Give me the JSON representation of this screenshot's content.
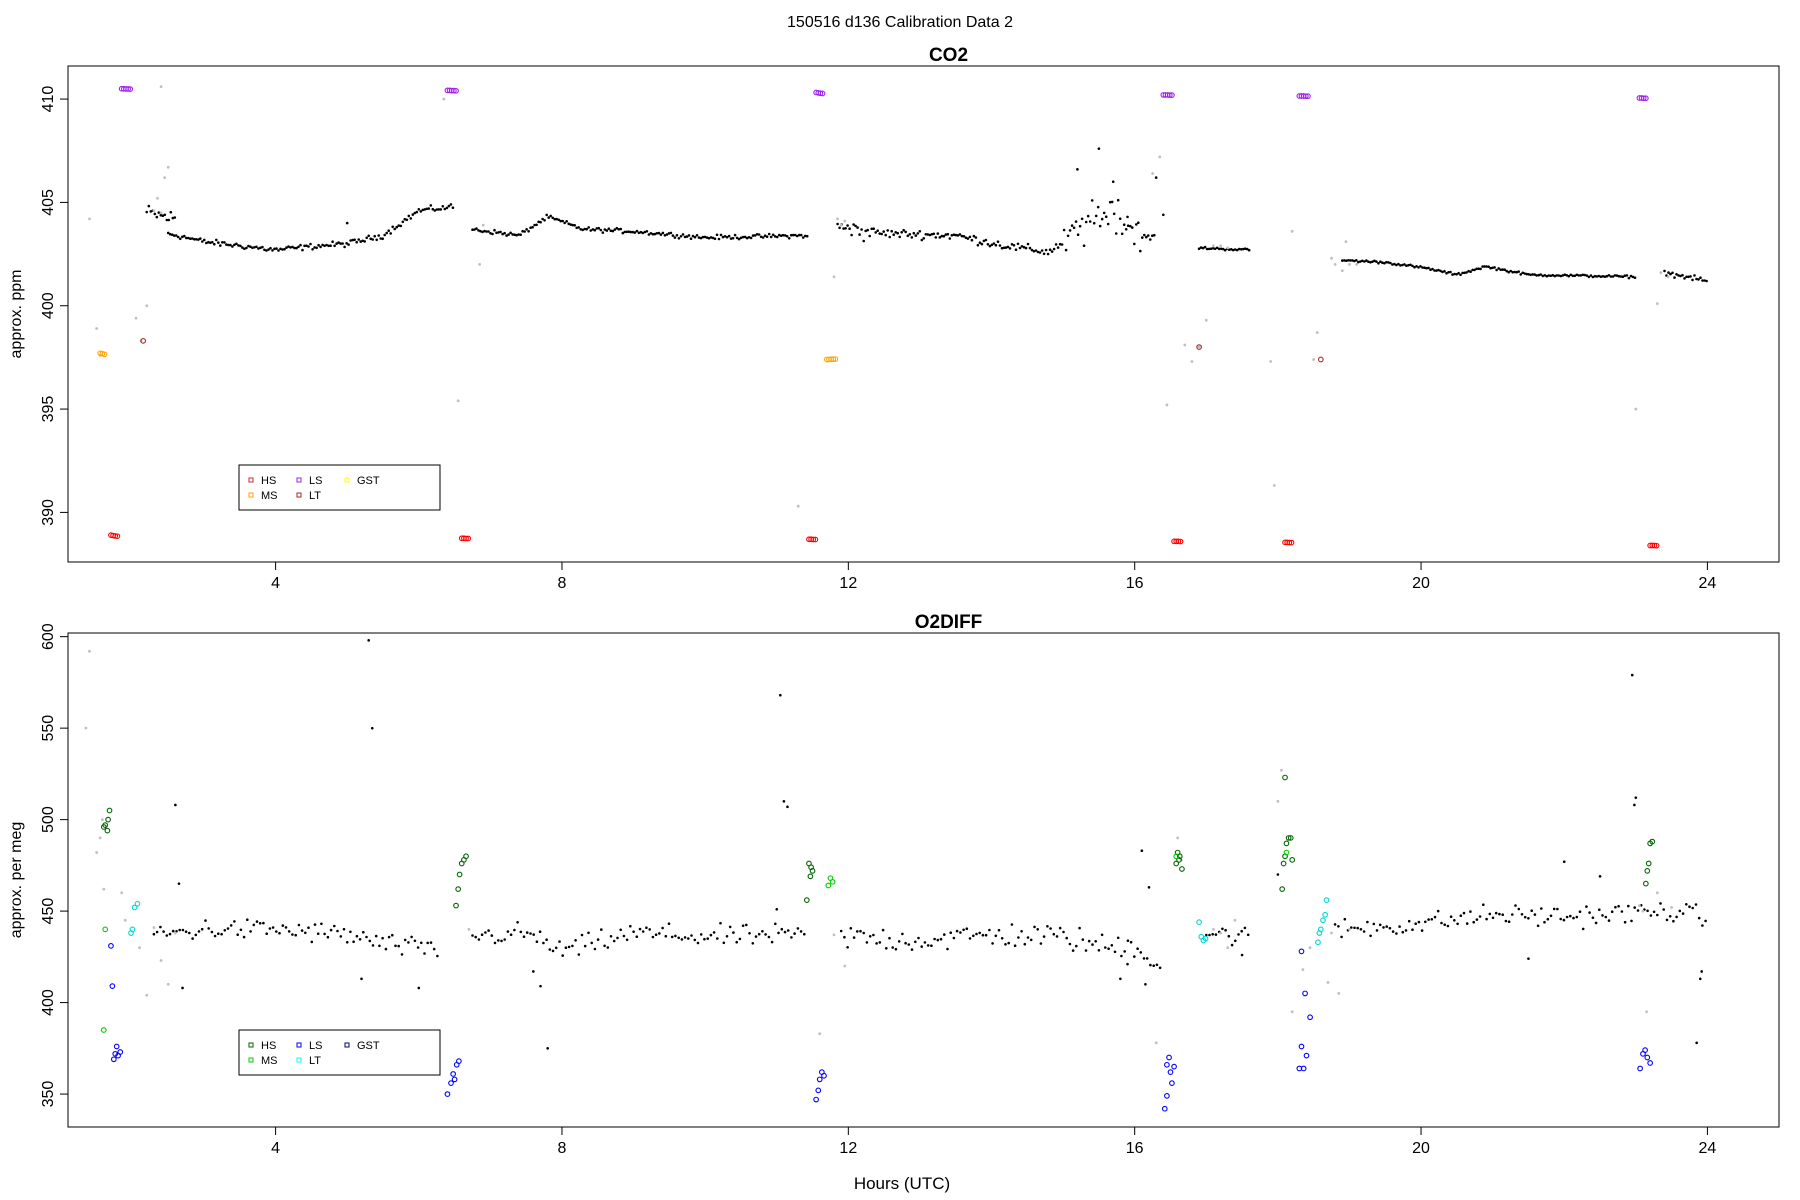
{
  "figure": {
    "title": "150516   d136   Calibration Data 2",
    "xlabel": "Hours (UTC)"
  },
  "chart_data": [
    {
      "type": "scatter",
      "title": "CO2",
      "ylabel": "approx. ppm",
      "xlim": [
        1.1,
        25.0
      ],
      "ylim": [
        387.6,
        411.6
      ],
      "xticks": [
        4,
        8,
        12,
        16,
        20,
        24
      ],
      "yticks": [
        390,
        395,
        400,
        405,
        410
      ],
      "grid": false,
      "legend": {
        "placement": "bottom-left",
        "entries": [
          {
            "label": "HS",
            "color": "#d62728"
          },
          {
            "label": "MS",
            "color": "#ffa500"
          },
          {
            "label": "LS",
            "color": "#a020f0"
          },
          {
            "label": "LT",
            "color": "#a52a2a"
          },
          {
            "label": "GST",
            "color": "#ffff00"
          }
        ]
      },
      "colors": {
        "sample": "#000000",
        "flagged": "#bfbfbf",
        "HS": "#ff0000",
        "MS": "#ffa500",
        "LS": "#a020f0",
        "LT": "#a52a2a"
      },
      "calibrations": [
        {
          "name": "HS",
          "points": [
            [
              1.7,
              388.9
            ],
            [
              1.73,
              388.88
            ],
            [
              1.76,
              388.86
            ],
            [
              1.79,
              388.85
            ],
            [
              6.6,
              388.75
            ],
            [
              6.63,
              388.75
            ],
            [
              6.66,
              388.74
            ],
            [
              6.69,
              388.74
            ],
            [
              11.45,
              388.7
            ],
            [
              11.48,
              388.7
            ],
            [
              11.51,
              388.69
            ],
            [
              11.54,
              388.69
            ],
            [
              16.55,
              388.6
            ],
            [
              16.58,
              388.6
            ],
            [
              16.61,
              388.6
            ],
            [
              16.64,
              388.59
            ],
            [
              18.1,
              388.55
            ],
            [
              18.13,
              388.55
            ],
            [
              18.16,
              388.54
            ],
            [
              18.19,
              388.54
            ],
            [
              23.2,
              388.4
            ],
            [
              23.23,
              388.4
            ],
            [
              23.26,
              388.4
            ],
            [
              23.29,
              388.39
            ]
          ]
        },
        {
          "name": "MS",
          "points": [
            [
              1.55,
              397.7
            ],
            [
              1.58,
              397.68
            ],
            [
              1.61,
              397.65
            ],
            [
              11.7,
              397.4
            ],
            [
              11.73,
              397.4
            ],
            [
              11.76,
              397.41
            ],
            [
              11.79,
              397.41
            ],
            [
              11.82,
              397.42
            ]
          ]
        },
        {
          "name": "LS",
          "points": [
            [
              1.85,
              410.5
            ],
            [
              1.88,
              410.5
            ],
            [
              1.91,
              410.49
            ],
            [
              1.94,
              410.49
            ],
            [
              1.97,
              410.48
            ],
            [
              6.4,
              410.42
            ],
            [
              6.43,
              410.42
            ],
            [
              6.46,
              410.41
            ],
            [
              6.49,
              410.41
            ],
            [
              6.52,
              410.4
            ],
            [
              11.55,
              410.32
            ],
            [
              11.58,
              410.3
            ],
            [
              11.61,
              410.28
            ],
            [
              11.64,
              410.27
            ],
            [
              16.4,
              410.2
            ],
            [
              16.43,
              410.2
            ],
            [
              16.46,
              410.2
            ],
            [
              16.49,
              410.19
            ],
            [
              16.52,
              410.19
            ],
            [
              18.3,
              410.15
            ],
            [
              18.33,
              410.15
            ],
            [
              18.36,
              410.15
            ],
            [
              18.39,
              410.14
            ],
            [
              18.42,
              410.14
            ],
            [
              23.05,
              410.05
            ],
            [
              23.08,
              410.05
            ],
            [
              23.11,
              410.04
            ],
            [
              23.14,
              410.04
            ]
          ]
        },
        {
          "name": "LT",
          "points": [
            [
              2.15,
              398.3
            ],
            [
              16.9,
              398.0
            ],
            [
              18.6,
              397.4
            ]
          ]
        }
      ]
    },
    {
      "type": "scatter",
      "title": "O2DIFF",
      "ylabel": "approx. per meg",
      "xlim": [
        1.1,
        25.0
      ],
      "ylim": [
        332,
        602
      ],
      "xticks": [
        4,
        8,
        12,
        16,
        20,
        24
      ],
      "yticks": [
        350,
        400,
        450,
        500,
        550,
        600
      ],
      "grid": false,
      "legend": {
        "placement": "bottom-left",
        "entries": [
          {
            "label": "HS",
            "color": "#006400"
          },
          {
            "label": "MS",
            "color": "#00cd00"
          },
          {
            "label": "LS",
            "color": "#0000ff"
          },
          {
            "label": "LT",
            "color": "#00ffff"
          },
          {
            "label": "GST",
            "color": "#00008b"
          }
        ]
      },
      "colors": {
        "sample": "#000000",
        "flagged": "#bfbfbf",
        "HS": "#006400",
        "MS": "#00cd00",
        "LS": "#0000ff",
        "LT": "#00d5d5"
      },
      "calibrations": [
        {
          "name": "HS",
          "points": [
            [
              1.68,
              505
            ],
            [
              1.66,
              500
            ],
            [
              1.62,
              497
            ],
            [
              1.65,
              494
            ],
            [
              1.6,
              496
            ],
            [
              6.6,
              476
            ],
            [
              6.63,
              478
            ],
            [
              6.66,
              480
            ],
            [
              6.57,
              470
            ],
            [
              6.55,
              462
            ],
            [
              6.52,
              453
            ],
            [
              11.45,
              476
            ],
            [
              11.48,
              474
            ],
            [
              11.5,
              472
            ],
            [
              11.47,
              469
            ],
            [
              11.42,
              456
            ],
            [
              16.6,
              482
            ],
            [
              16.63,
              480
            ],
            [
              16.58,
              476
            ],
            [
              16.66,
              473
            ],
            [
              16.62,
              478
            ],
            [
              18.1,
              523
            ],
            [
              18.15,
              490
            ],
            [
              18.18,
              490
            ],
            [
              18.12,
              487
            ],
            [
              18.1,
              480
            ],
            [
              18.2,
              478
            ],
            [
              18.08,
              476
            ],
            [
              18.06,
              462
            ],
            [
              23.2,
              487
            ],
            [
              23.23,
              488
            ],
            [
              23.18,
              476
            ],
            [
              23.16,
              472
            ],
            [
              23.14,
              465
            ]
          ]
        },
        {
          "name": "MS",
          "points": [
            [
              1.62,
              440
            ],
            [
              1.6,
              385
            ],
            [
              11.75,
              468
            ],
            [
              11.78,
              466
            ],
            [
              11.72,
              464
            ],
            [
              16.58,
              480
            ],
            [
              18.12,
              482
            ]
          ]
        },
        {
          "name": "LS",
          "points": [
            [
              1.78,
              376
            ],
            [
              1.8,
              371
            ],
            [
              1.83,
              373
            ],
            [
              1.76,
              372
            ],
            [
              1.74,
              369
            ],
            [
              1.72,
              409
            ],
            [
              1.7,
              431
            ],
            [
              6.4,
              350
            ],
            [
              6.45,
              356
            ],
            [
              6.48,
              361
            ],
            [
              6.5,
              358
            ],
            [
              6.53,
              366
            ],
            [
              6.56,
              368
            ],
            [
              11.55,
              347
            ],
            [
              11.58,
              352
            ],
            [
              11.6,
              358
            ],
            [
              11.63,
              362
            ],
            [
              11.66,
              360
            ],
            [
              16.45,
              366
            ],
            [
              16.48,
              370
            ],
            [
              16.5,
              362
            ],
            [
              16.52,
              356
            ],
            [
              16.45,
              349
            ],
            [
              16.42,
              342
            ],
            [
              16.55,
              365
            ],
            [
              18.3,
              364
            ],
            [
              18.33,
              376
            ],
            [
              18.36,
              364
            ],
            [
              18.4,
              371
            ],
            [
              18.45,
              392
            ],
            [
              18.38,
              405
            ],
            [
              18.33,
              428
            ],
            [
              23.1,
              372
            ],
            [
              23.13,
              374
            ],
            [
              23.16,
              370
            ],
            [
              23.2,
              367
            ],
            [
              23.06,
              364
            ]
          ]
        },
        {
          "name": "LT",
          "points": [
            [
              2.0,
              440
            ],
            [
              2.03,
              452
            ],
            [
              2.07,
              454
            ],
            [
              1.98,
              438
            ],
            [
              16.9,
              444
            ],
            [
              16.93,
              436
            ],
            [
              16.96,
              434
            ],
            [
              16.99,
              435
            ],
            [
              18.6,
              440
            ],
            [
              18.63,
              445
            ],
            [
              18.66,
              448
            ],
            [
              18.56,
              433
            ],
            [
              18.58,
              438
            ],
            [
              18.68,
              456
            ]
          ]
        }
      ]
    }
  ]
}
